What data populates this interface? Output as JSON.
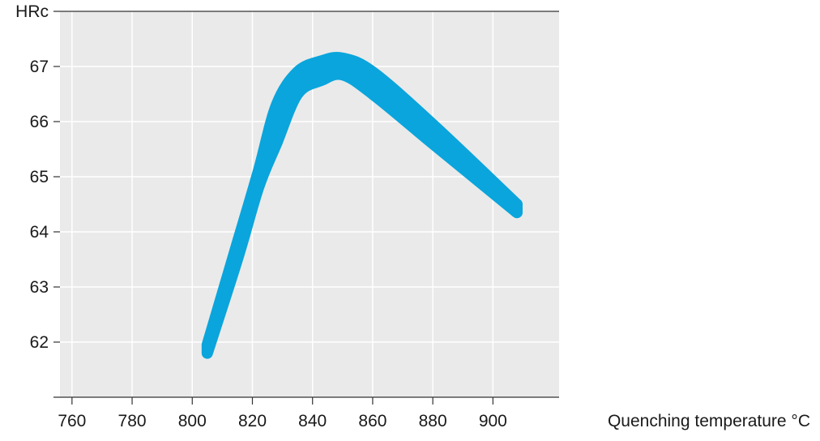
{
  "chart_data": {
    "type": "line",
    "title": "",
    "ylabel": "HRc",
    "xlabel": "Quenching temperature °C",
    "xlim": [
      756,
      922
    ],
    "ylim": [
      61,
      68
    ],
    "x_ticks": [
      760,
      780,
      800,
      820,
      840,
      860,
      880,
      900
    ],
    "y_ticks": [
      62,
      63,
      64,
      65,
      66,
      67
    ],
    "grid": true,
    "legend": "none",
    "series": [
      {
        "band": true,
        "x": [
          805,
          815,
          822,
          828,
          835,
          843,
          850,
          860,
          880,
          908
        ],
        "upper": [
          61.95,
          63.8,
          65.1,
          66.3,
          66.9,
          67.1,
          67.15,
          66.9,
          65.95,
          64.5
        ],
        "lower": [
          61.8,
          63.5,
          64.8,
          65.6,
          66.5,
          66.75,
          66.85,
          66.5,
          65.6,
          64.35
        ]
      }
    ],
    "colors": {
      "band": "#0aa5dc",
      "plot_bg": "#eaeaea",
      "grid": "#ffffff",
      "axis": "#333333"
    }
  }
}
